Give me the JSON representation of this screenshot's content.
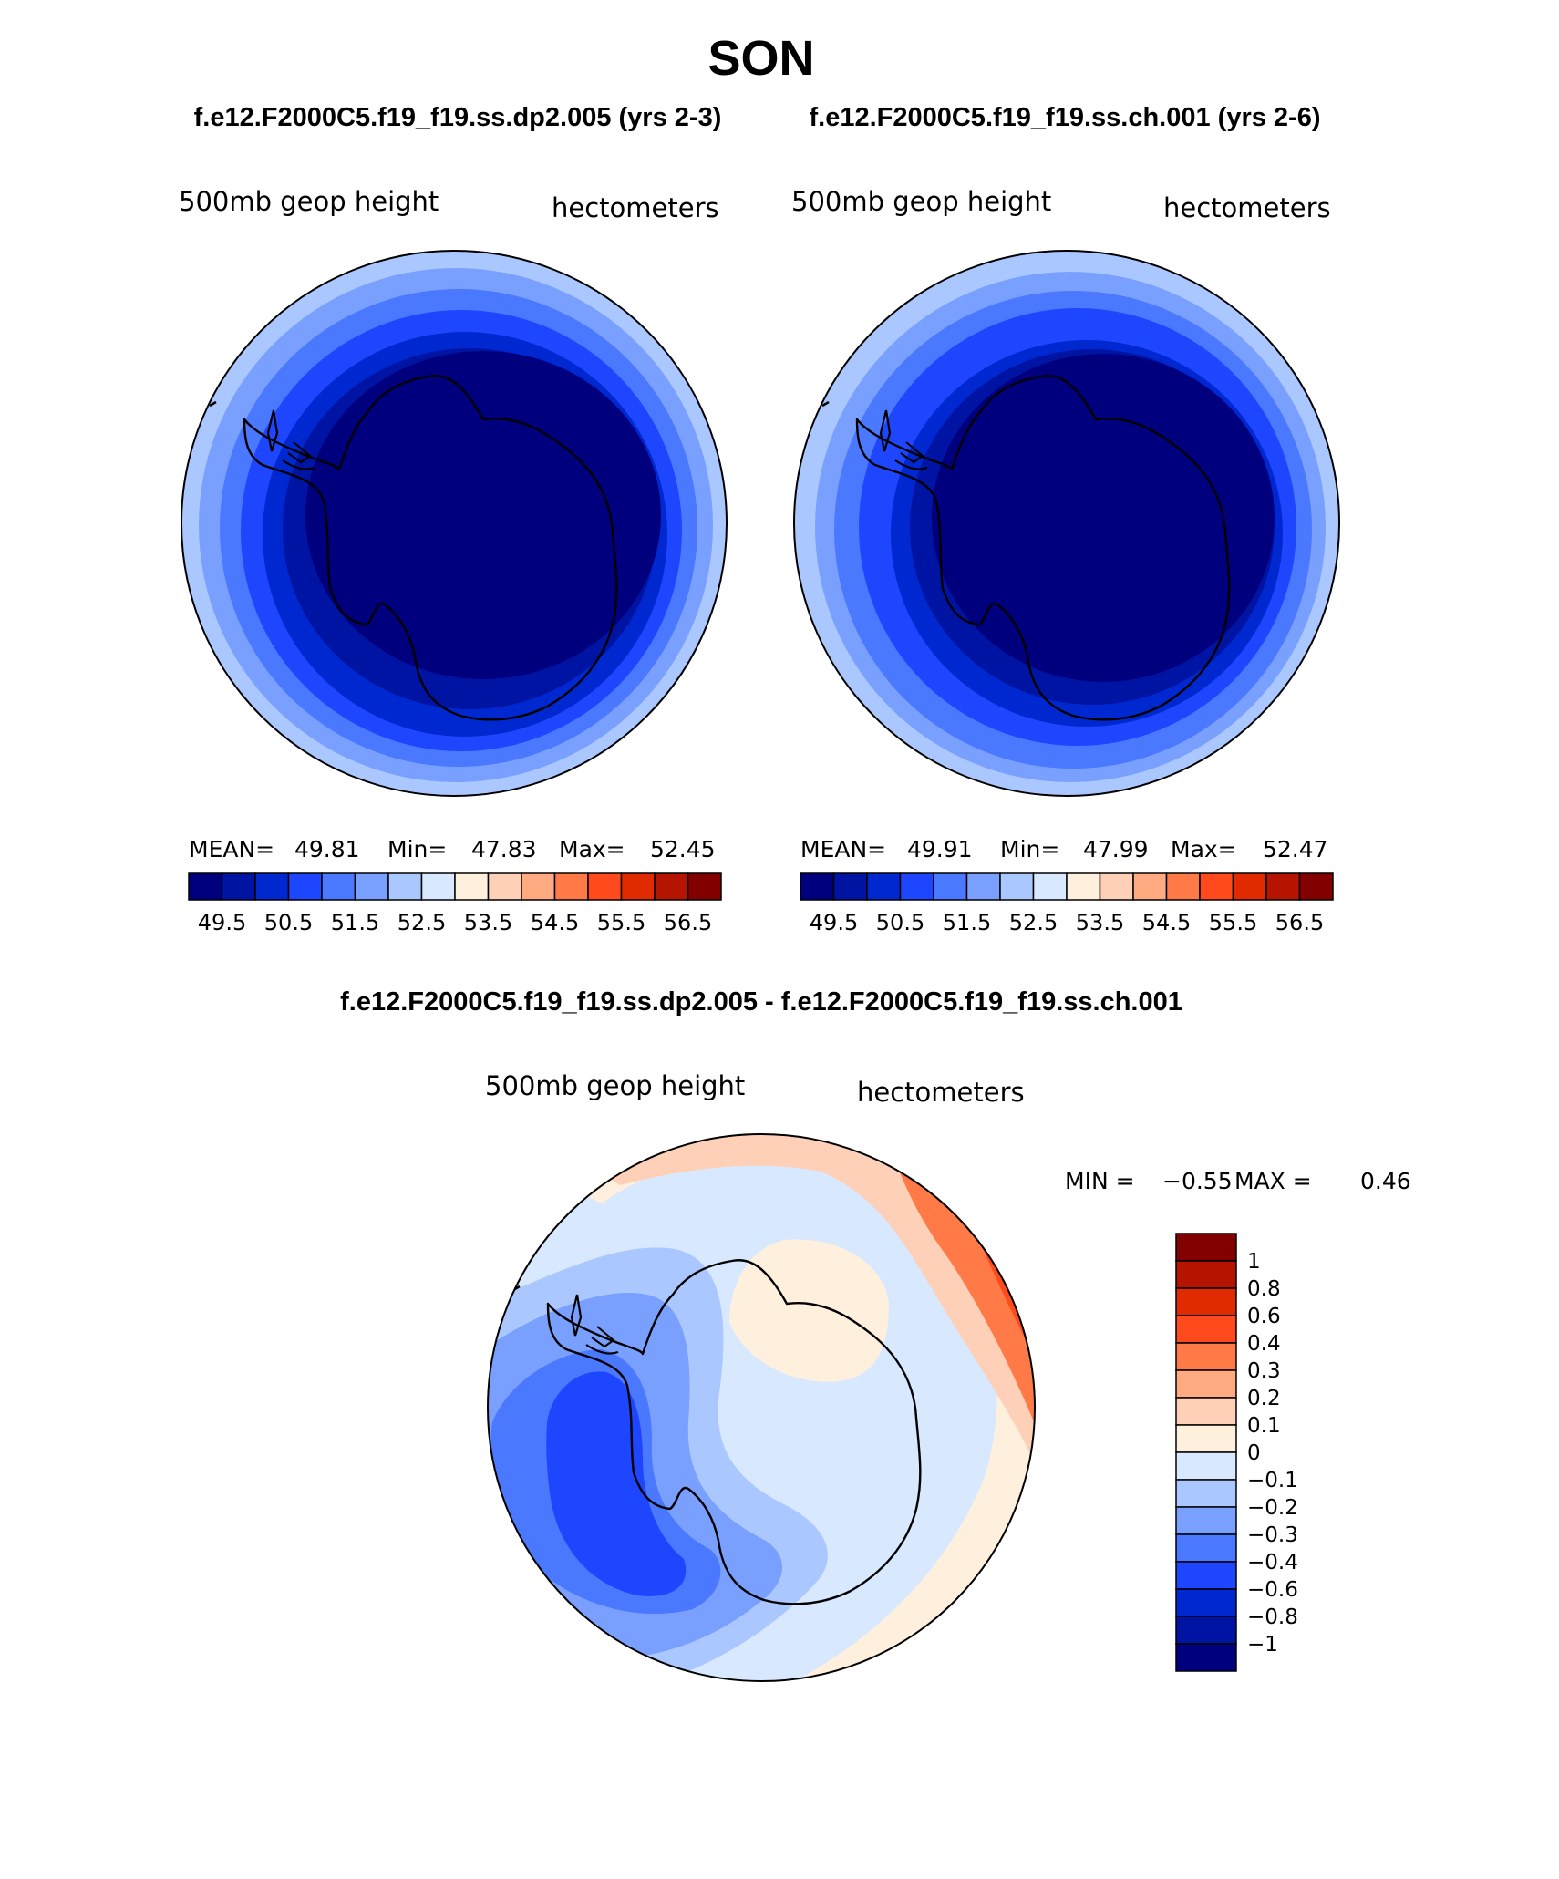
{
  "page_title": "SON",
  "panels": [
    {
      "case_label": "f.e12.F2000C5.f19_f19.ss.dp2.005 (yrs 2-3)",
      "variable": "500mb geop height",
      "units": "hectometers",
      "stats": {
        "mean_label": "MEAN=",
        "mean": "49.81",
        "min_label": "Min=",
        "min": "47.83",
        "max_label": "Max=",
        "max": "52.45"
      }
    },
    {
      "case_label": "f.e12.F2000C5.f19_f19.ss.ch.001 (yrs 2-6)",
      "variable": "500mb geop height",
      "units": "hectometers",
      "stats": {
        "mean_label": "MEAN=",
        "mean": "49.91",
        "min_label": "Min=",
        "min": "47.99",
        "max_label": "Max=",
        "max": "52.47"
      }
    }
  ],
  "abs_colorbar": {
    "colors": [
      "#00007f",
      "#0014a4",
      "#0028d0",
      "#1e46ff",
      "#4a78ff",
      "#7aa0ff",
      "#aac8ff",
      "#d8e9ff",
      "#fff0de",
      "#ffd0b8",
      "#ffaa80",
      "#ff7a46",
      "#ff4a1e",
      "#e02a00",
      "#b41400",
      "#820000"
    ],
    "labels": [
      "49.5",
      "50.5",
      "51.5",
      "52.5",
      "53.5",
      "54.5",
      "55.5",
      "56.5"
    ]
  },
  "diff_panel": {
    "title": "f.e12.F2000C5.f19_f19.ss.dp2.005 - f.e12.F2000C5.f19_f19.ss.ch.001",
    "variable": "500mb geop height",
    "units": "hectometers",
    "minmax": {
      "min_label": "MIN =",
      "min": "−0.55",
      "max_label": "MAX =",
      "max": "0.46"
    },
    "colorbar": {
      "colors": [
        "#820000",
        "#b41400",
        "#e02a00",
        "#ff4a1e",
        "#ff7a46",
        "#ffaa80",
        "#ffd0b8",
        "#fff0de",
        "#d8e9ff",
        "#aac8ff",
        "#7aa0ff",
        "#4a78ff",
        "#1e46ff",
        "#0028d0",
        "#0014a4",
        "#00007f"
      ],
      "labels": [
        "1",
        "0.8",
        "0.6",
        "0.4",
        "0.3",
        "0.2",
        "0.1",
        "0",
        "−0.1",
        "−0.2",
        "−0.3",
        "−0.4",
        "−0.6",
        "−0.8",
        "−1"
      ]
    }
  }
}
